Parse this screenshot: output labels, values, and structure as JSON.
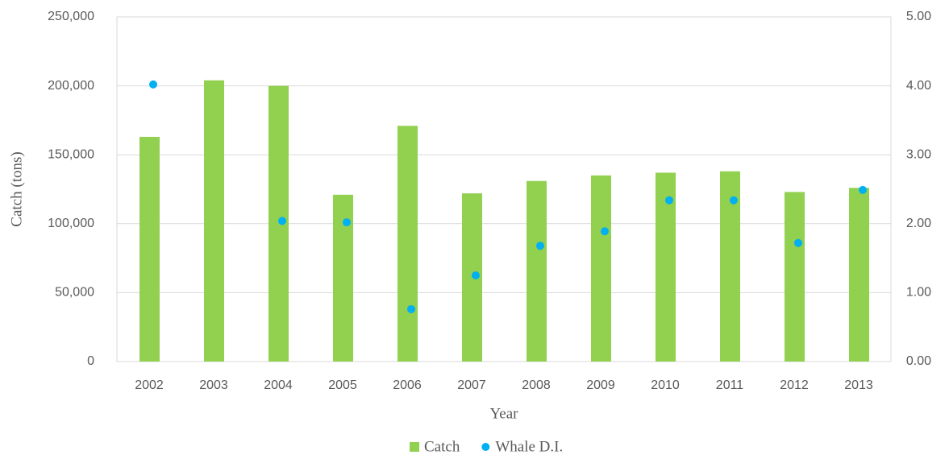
{
  "chart_data": {
    "type": "bar",
    "x_label": "Year",
    "y_label": "Catch (tons)",
    "categories": [
      "2002",
      "2003",
      "2004",
      "2005",
      "2006",
      "2007",
      "2008",
      "2009",
      "2010",
      "2011",
      "2012",
      "2013"
    ],
    "series": [
      {
        "name": "Catch",
        "type": "bar",
        "color": "#92d050",
        "values": [
          163000,
          204000,
          200000,
          121000,
          171000,
          122000,
          131000,
          135000,
          137000,
          138000,
          123000,
          126000
        ]
      },
      {
        "name": "Whale D.I.",
        "type": "scatter",
        "axis": "y2",
        "color": "#00b0f0",
        "values": [
          4.02,
          null,
          2.04,
          2.02,
          0.76,
          1.25,
          1.68,
          1.89,
          2.34,
          2.34,
          1.72,
          2.49
        ]
      }
    ],
    "ylim": [
      0,
      250000
    ],
    "yticks": [
      {
        "value": 0,
        "label": "0"
      },
      {
        "value": 50000,
        "label": "50,000"
      },
      {
        "value": 100000,
        "label": "100,000"
      },
      {
        "value": 150000,
        "label": "150,000"
      },
      {
        "value": 200000,
        "label": "200,000"
      },
      {
        "value": 250000,
        "label": "250,000"
      }
    ],
    "y2lim": [
      0,
      5
    ],
    "y2ticks": [
      {
        "value": 0,
        "label": "0.00"
      },
      {
        "value": 1,
        "label": "1.00"
      },
      {
        "value": 2,
        "label": "2.00"
      },
      {
        "value": 3,
        "label": "3.00"
      },
      {
        "value": 4,
        "label": "4.00"
      },
      {
        "value": 5,
        "label": "5.00"
      }
    ],
    "grid": true,
    "legend": "bottom"
  }
}
